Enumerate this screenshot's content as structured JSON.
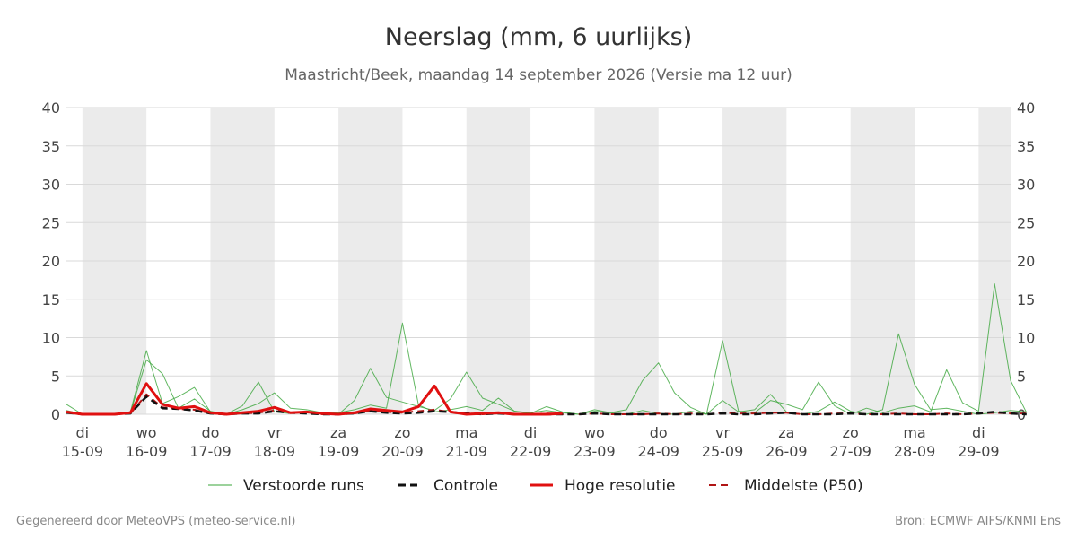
{
  "header": {
    "title": "Neerslag (mm, 6 uurlijks)",
    "subtitle": "Maastricht/Beek, maandag 14 september 2026 (Versie ma 12 uur)"
  },
  "footer": {
    "left": "Gegenereerd door MeteoVPS (meteo-service.nl)",
    "right": "Bron: ECMWF AIFS/KNMI Ens"
  },
  "colors": {
    "ensemble": "#3aa53a",
    "control": "#111111",
    "hires": "#e01010",
    "median": "#b01515",
    "weekend_band": "#ebebeb",
    "grid": "#d9d9d9"
  },
  "chart_data": {
    "type": "line",
    "y_unit": "mm",
    "ylim": [
      0,
      40
    ],
    "y_ticks": [
      0,
      5,
      10,
      15,
      20,
      25,
      30,
      35,
      40
    ],
    "grid": "horizontal",
    "legend_position": "bottom",
    "x_axis": {
      "start": "2026-09-14T18:00",
      "end": "2026-09-29T12:00",
      "step_hours": 6,
      "ticks": [
        {
          "day": "di",
          "date": "15-09"
        },
        {
          "day": "wo",
          "date": "16-09"
        },
        {
          "day": "do",
          "date": "17-09"
        },
        {
          "day": "vr",
          "date": "18-09"
        },
        {
          "day": "za",
          "date": "19-09"
        },
        {
          "day": "zo",
          "date": "20-09"
        },
        {
          "day": "ma",
          "date": "21-09"
        },
        {
          "day": "di",
          "date": "22-09"
        },
        {
          "day": "wo",
          "date": "23-09"
        },
        {
          "day": "do",
          "date": "24-09"
        },
        {
          "day": "vr",
          "date": "25-09"
        },
        {
          "day": "za",
          "date": "26-09"
        },
        {
          "day": "zo",
          "date": "27-09"
        },
        {
          "day": "ma",
          "date": "28-09"
        },
        {
          "day": "di",
          "date": "29-09"
        }
      ]
    },
    "legend": [
      {
        "label": "Verstoorde runs",
        "style": "thin-green"
      },
      {
        "label": "Controle",
        "style": "black-dashed"
      },
      {
        "label": "Hoge resolutie",
        "style": "red-solid"
      },
      {
        "label": "Middelste (P50)",
        "style": "darkred-dashed"
      }
    ],
    "series": [
      {
        "name": "Hoge resolutie",
        "values": [
          0.3,
          0,
          0,
          0,
          0.2,
          4.0,
          1.3,
          0.8,
          1.0,
          0.2,
          0,
          0.2,
          0.4,
          0.9,
          0.2,
          0.3,
          0.1,
          0,
          0.2,
          0.7,
          0.5,
          0.3,
          1.0,
          3.7,
          0.3,
          0,
          0.1,
          0.2,
          0,
          0,
          0,
          0.1
        ]
      },
      {
        "name": "Controle",
        "values": [
          0.2,
          0,
          0,
          0,
          0.1,
          2.3,
          0.8,
          0.7,
          0.5,
          0.1,
          0,
          0.1,
          0.1,
          0.4,
          0.2,
          0.1,
          0,
          0,
          0.1,
          0.4,
          0.2,
          0.1,
          0.2,
          0.4,
          0.3,
          0.1,
          0,
          0.1,
          0,
          0,
          0,
          0,
          0,
          0.1,
          0,
          0,
          0,
          0,
          0,
          0,
          0,
          0.1,
          0,
          0,
          0.1,
          0.2,
          0,
          0,
          0,
          0.1,
          0,
          0,
          0,
          0,
          0,
          0,
          0,
          0.1,
          0.3,
          0.1,
          0
        ]
      },
      {
        "name": "Middelste (P50)",
        "values": [
          0.2,
          0,
          0,
          0,
          0.1,
          2.6,
          0.9,
          0.7,
          0.6,
          0.1,
          0,
          0.1,
          0.2,
          0.5,
          0.2,
          0.2,
          0,
          0,
          0.1,
          0.5,
          0.3,
          0.2,
          0.4,
          0.6,
          0.3,
          0.1,
          0,
          0.1,
          0,
          0,
          0.1,
          0,
          0,
          0.1,
          0,
          0,
          0,
          0.1,
          0,
          0.1,
          0,
          0.2,
          0.1,
          0.1,
          0.2,
          0.2,
          0,
          0,
          0.1,
          0.1,
          0,
          0,
          0.1,
          0,
          0,
          0.1,
          0,
          0.1,
          0.2,
          0.1,
          0.1
        ]
      },
      {
        "name": "Verstoorde runs",
        "members": [
          [
            1.3,
            0,
            0,
            0,
            0.3,
            8.3,
            1.4,
            2.3,
            3.5,
            0.3,
            0,
            0.6,
            1.4,
            2.8,
            0.8,
            0.6,
            0.2,
            0,
            1.8,
            6.0,
            2.2,
            1.6,
            1.0,
            0.5,
            2.0,
            5.5,
            2.1,
            1.3,
            0.4,
            0.2,
            0.5,
            0.2,
            0,
            0.6,
            0.2,
            0,
            0.5,
            0.1,
            0,
            0.4,
            0,
            1.8,
            0.3,
            0.6,
            2.6,
            0.3,
            0,
            0.4,
            1.6,
            0.4,
            0,
            0.6,
            10.5,
            3.9,
            0.6,
            0.8,
            0.4,
            0,
            0.2,
            0.5,
            0.3
          ],
          [
            0.5,
            0,
            0,
            0,
            0.2,
            7.1,
            5.3,
            0.8,
            2.0,
            0.4,
            0,
            1.1,
            4.2,
            0.3,
            0.1,
            0.3,
            0.1,
            0.2,
            0.6,
            1.2,
            0.8,
            11.9,
            1.2,
            0.3,
            0.6,
            1.0,
            0.5,
            2.1,
            0.4,
            0.1,
            1.0,
            0.3,
            0,
            0.4,
            0.2,
            0.6,
            4.4,
            6.7,
            2.8,
            0.9,
            0,
            9.6,
            0.4,
            0.2,
            1.8,
            1.3,
            0.6,
            4.2,
            1.1,
            0,
            0.8,
            0.2,
            0.8,
            1.1,
            0.3,
            5.8,
            1.5,
            0.4,
            17.0,
            4.4,
            0.2
          ]
        ]
      }
    ]
  }
}
